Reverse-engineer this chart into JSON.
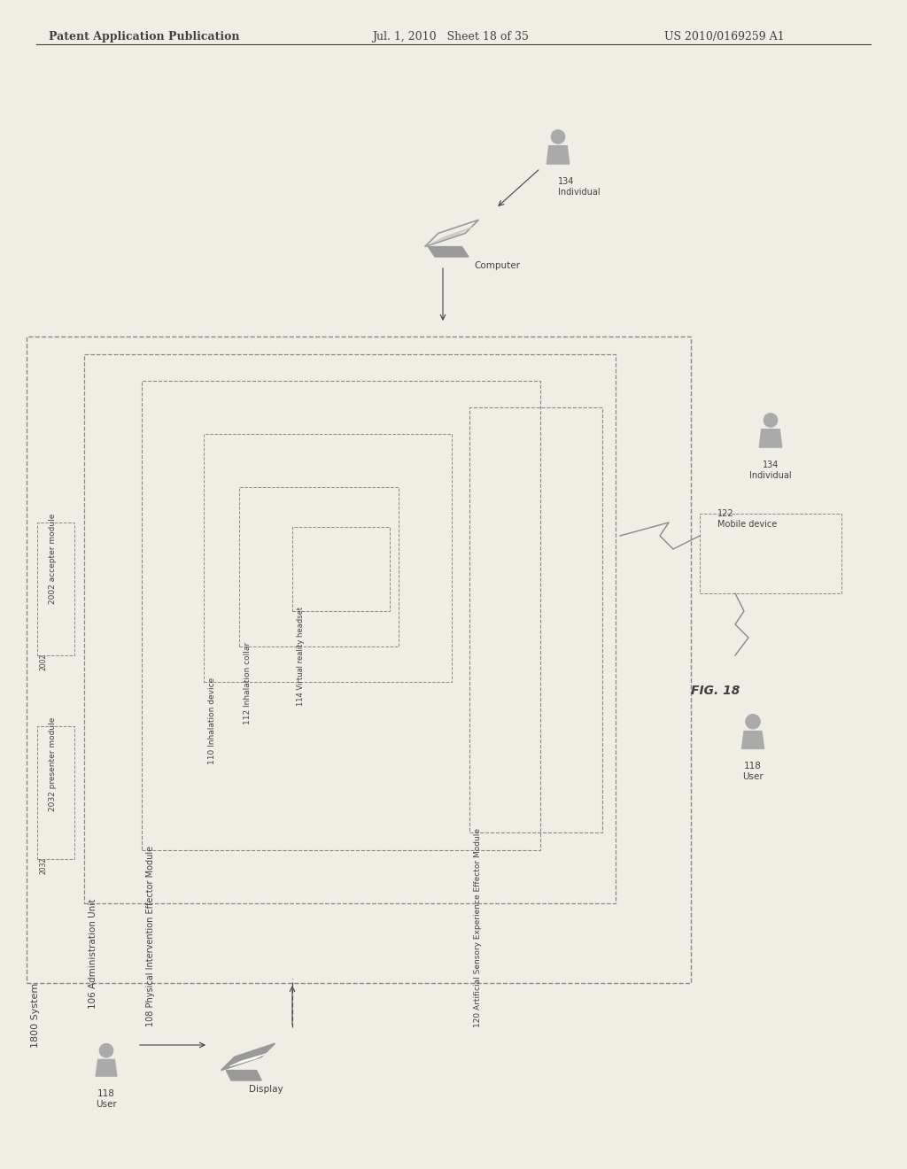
{
  "header_left": "Patent Application Publication",
  "header_mid": "Jul. 1, 2010   Sheet 18 of 35",
  "header_right": "US 2010/0169259 A1",
  "fig_label": "FIG. 18",
  "bg_color": "#f5f5f0",
  "page_bg": "#f0ede5",
  "box_color": "#b0b0b0",
  "text_color": "#404040",
  "labels": {
    "system": "1800 System",
    "accepter": "2002 accepter module",
    "presenter": "2032 presenter module",
    "admin_unit": "106 Administration Unit",
    "physical": "108 Physical Intervention Effector Module",
    "inhalation_device": "110 Inhalation device",
    "inhalation_collar": "112 Inhalation collar",
    "vr_headset": "114 Virtual reality headset",
    "sensory": "120 Artificial Sensory Experience Effector Module",
    "user_118_bottom_left": "118\nUser",
    "display_bottom_left": "Display",
    "individual_top": "134\nIndividual",
    "computer_top": "Computer",
    "individual_right": "134\nIndividual",
    "mobile": "122\nMobile device",
    "user_right": "118\nUser"
  }
}
